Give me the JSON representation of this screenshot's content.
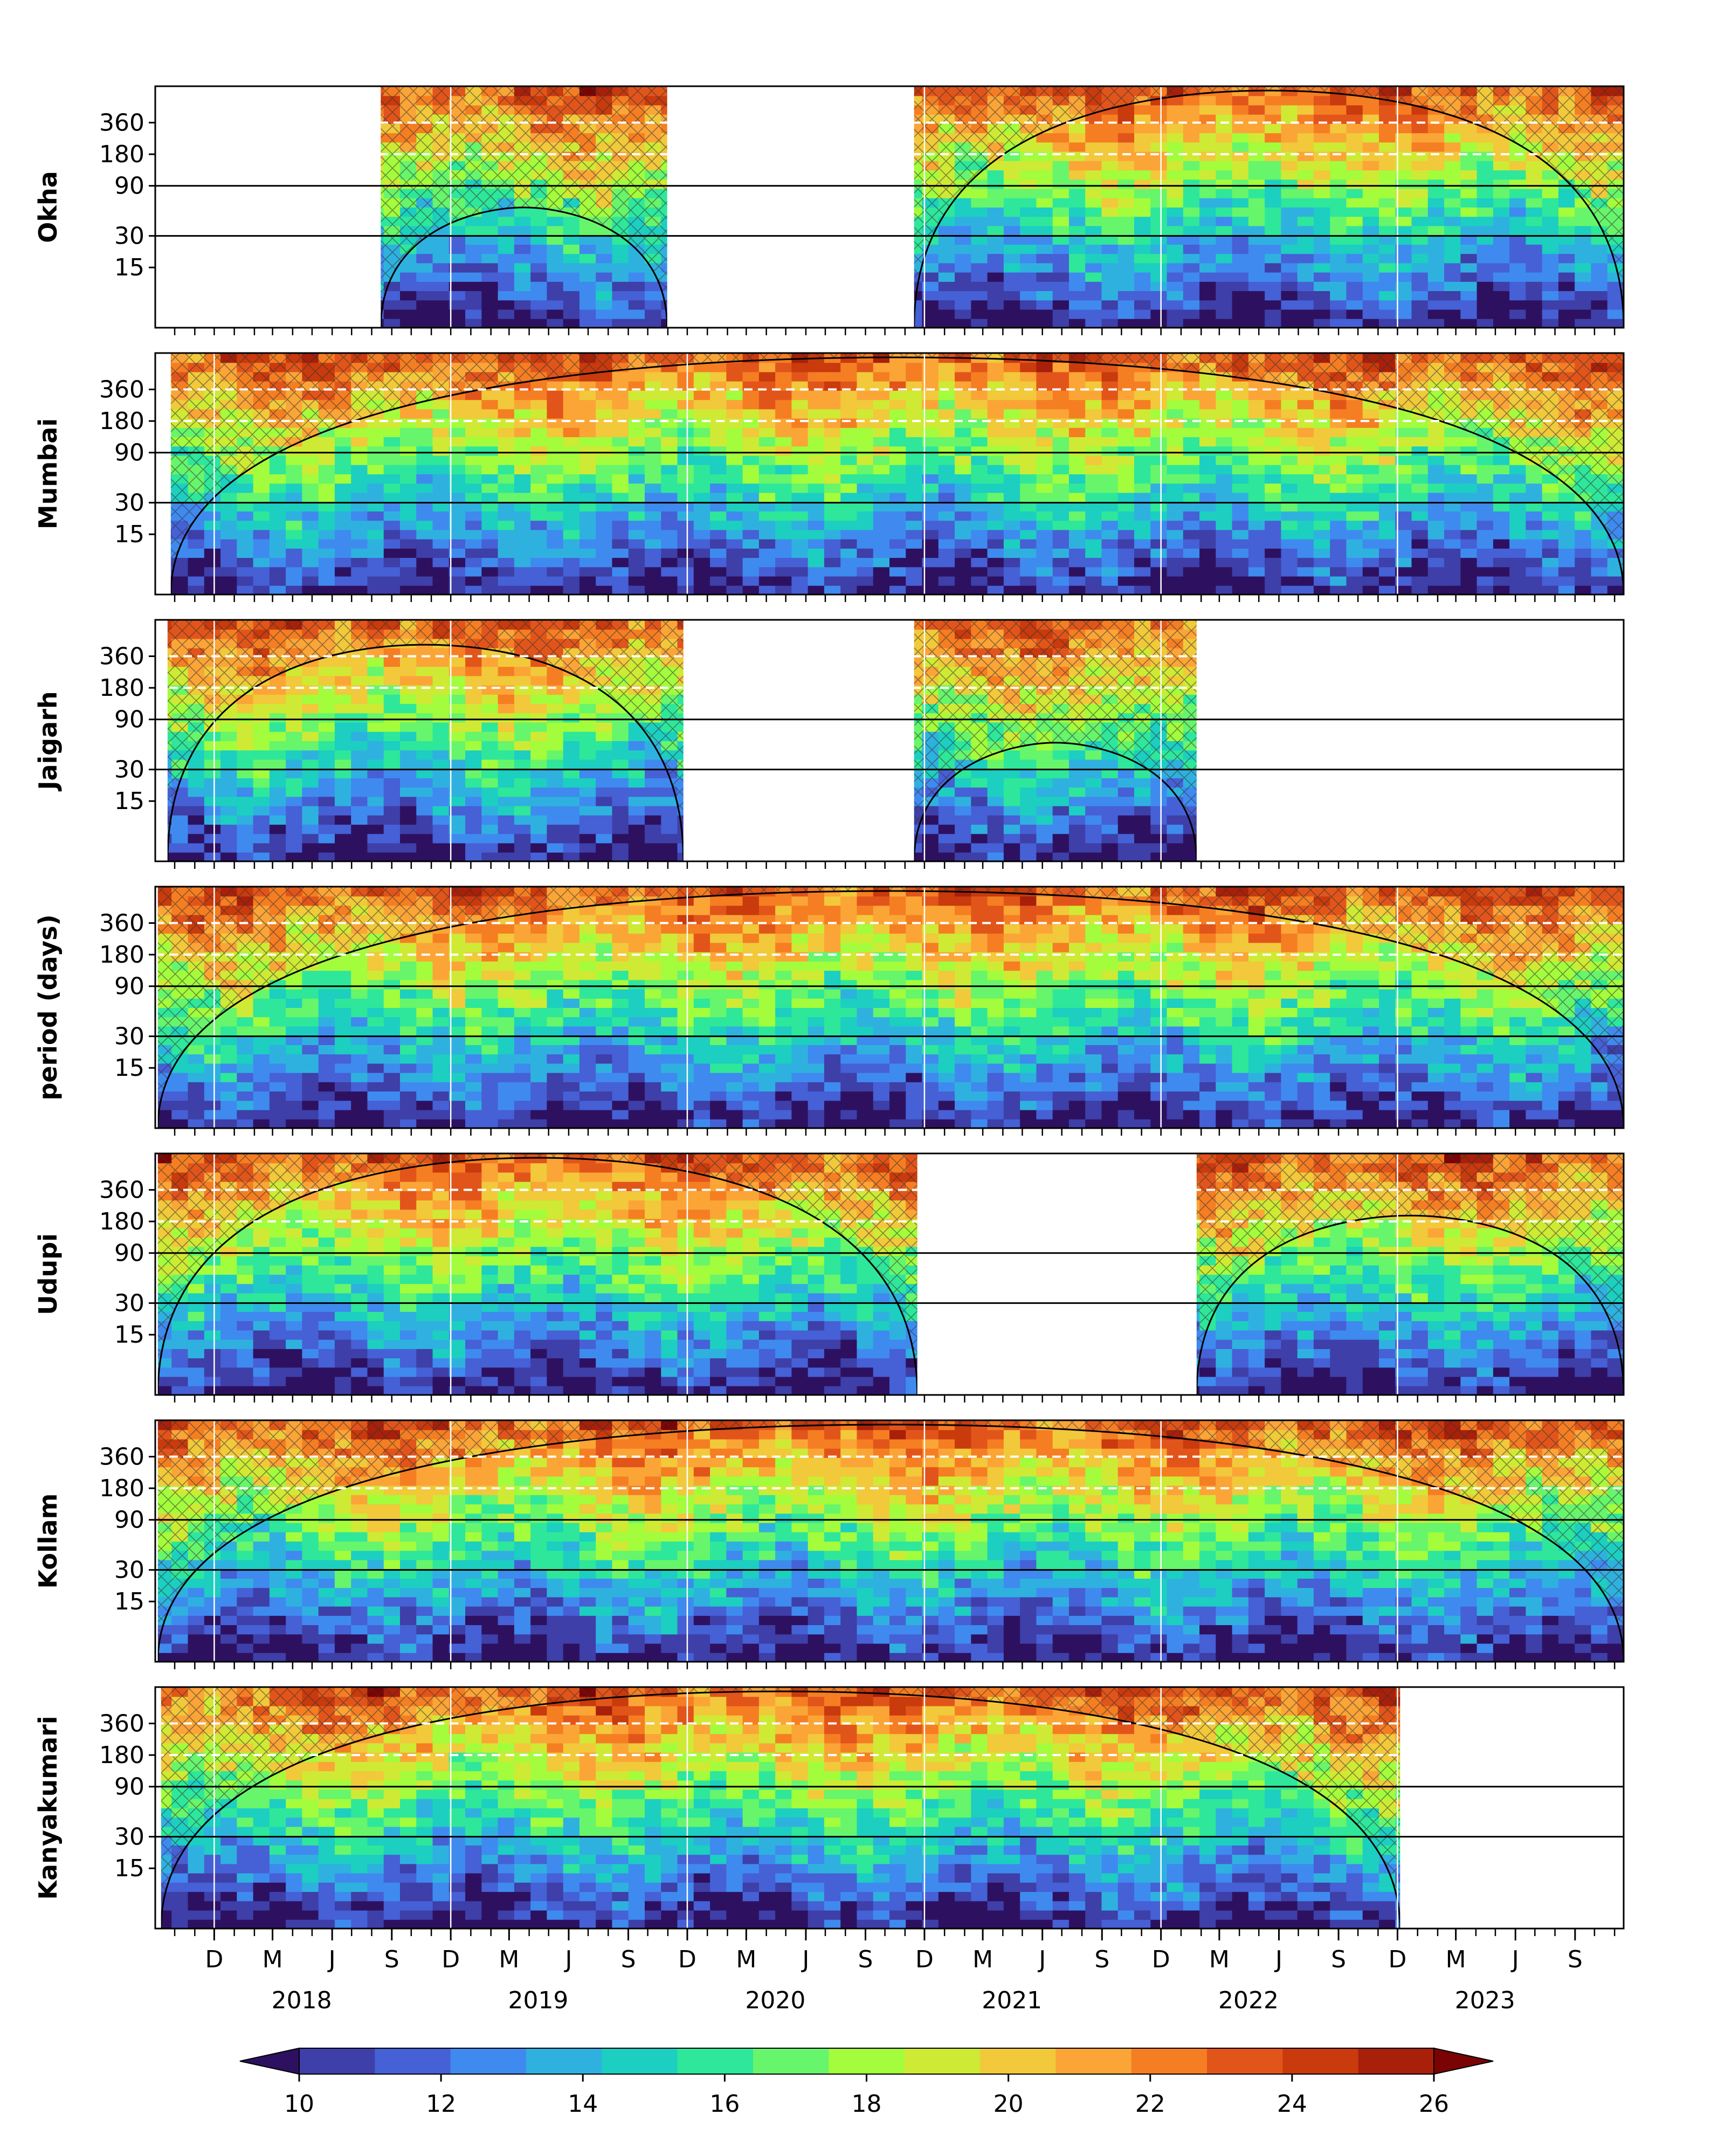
{
  "chart_data": {
    "type": "heatmap",
    "description_kind": "wavelet power spectrum panels",
    "ylabel": "period (days)",
    "yticks": [
      15,
      30,
      90,
      180,
      360
    ],
    "reference_lines_solid": [
      30,
      90
    ],
    "reference_lines_dashed": [
      180,
      360
    ],
    "period_range_days": [
      4,
      800
    ],
    "x_start": "2017-09-01",
    "x_end": "2023-11-15",
    "x_month_ticks": [
      "D",
      "M",
      "J",
      "S",
      "D",
      "M",
      "J",
      "S",
      "D",
      "M",
      "J",
      "S",
      "D",
      "M",
      "J",
      "S",
      "D",
      "M",
      "J",
      "S",
      "D",
      "M",
      "J",
      "S"
    ],
    "x_year_labels": [
      "2018",
      "2019",
      "2020",
      "2021",
      "2022",
      "2023"
    ],
    "panels": [
      {
        "name": "Okha",
        "segments": [
          [
            "2018-08-15",
            "2019-10-31"
          ],
          [
            "2020-11-15",
            "2023-11-15"
          ]
        ]
      },
      {
        "name": "Mumbai",
        "segments": [
          [
            "2017-09-25",
            "2023-11-15"
          ]
        ]
      },
      {
        "name": "Jaigarh",
        "segments": [
          [
            "2017-09-20",
            "2019-11-25"
          ],
          [
            "2020-11-15",
            "2022-01-25"
          ]
        ]
      },
      {
        "name": "period (days)",
        "segments": [
          [
            "2017-09-05",
            "2023-11-15"
          ]
        ]
      },
      {
        "name": "Udupi",
        "segments": [
          [
            "2017-09-05",
            "2020-11-20"
          ],
          [
            "2022-01-25",
            "2023-11-15"
          ]
        ]
      },
      {
        "name": "Kollam",
        "segments": [
          [
            "2017-09-05",
            "2023-11-15"
          ]
        ]
      },
      {
        "name": "Kanyakumari",
        "segments": [
          [
            "2017-09-10",
            "2022-12-05"
          ]
        ]
      }
    ],
    "colorbar": {
      "ticks": [
        10,
        12,
        14,
        16,
        18,
        20,
        22,
        24,
        26
      ],
      "step": 1,
      "extend": "both",
      "colors": [
        "#2d1160",
        "#3e3fa8",
        "#4660d6",
        "#3f8aef",
        "#2fb1df",
        "#1ccfc0",
        "#2ee79a",
        "#67f56b",
        "#a3fc3c",
        "#cfea34",
        "#f1c93a",
        "#fba537",
        "#f57e22",
        "#e2551a",
        "#c93a0d",
        "#a8200a",
        "#7a0403"
      ]
    }
  }
}
